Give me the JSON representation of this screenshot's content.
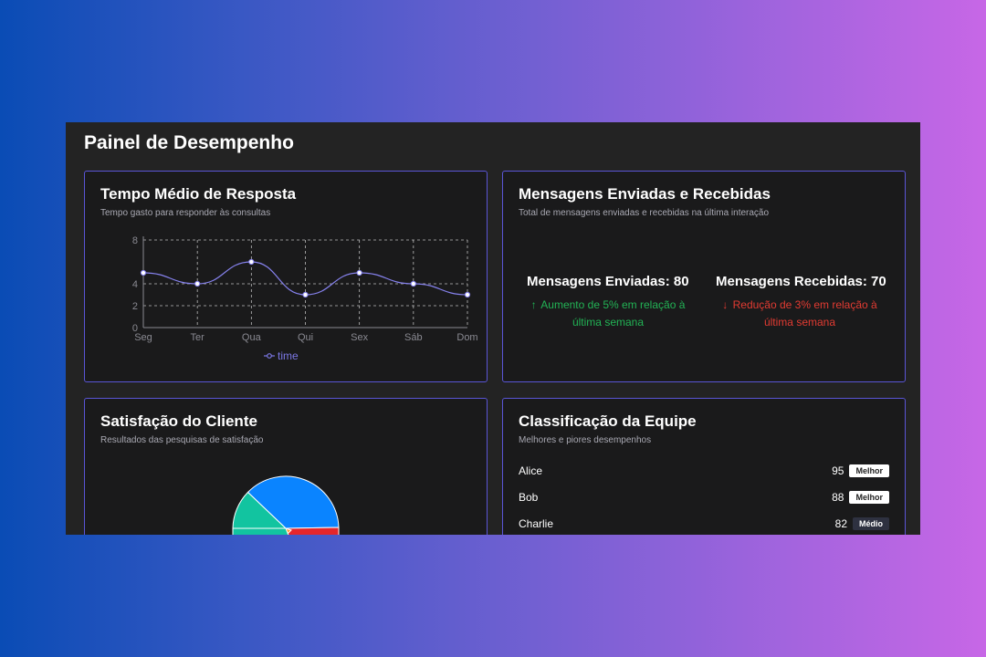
{
  "page": {
    "title": "Painel de Desempenho"
  },
  "response_time": {
    "title": "Tempo Médio de Resposta",
    "subtitle": "Tempo gasto para responder às consultas",
    "legend": "time",
    "line_color": "#8682ee"
  },
  "chart_data": {
    "type": "line",
    "categories": [
      "Seg",
      "Ter",
      "Qua",
      "Qui",
      "Sex",
      "Sáb",
      "Dom"
    ],
    "series": [
      {
        "name": "time",
        "values": [
          5,
          4,
          6,
          3,
          5,
          4,
          3
        ]
      }
    ],
    "y_ticks": [
      "0",
      "2",
      "4",
      "8"
    ],
    "ylim": [
      0,
      8
    ],
    "grid": true,
    "legend_position": "bottom"
  },
  "messages": {
    "title": "Mensagens Enviadas e Recebidas",
    "subtitle": "Total de mensagens enviadas e recebidas na última interação",
    "sent_label": "Mensagens Enviadas: 80",
    "sent_note_line1": "Aumento de 5% em relação à",
    "sent_note_line2": "última semana",
    "received_label": "Mensagens Recebidas: 70",
    "received_note_line1": "Redução de 3% em relação à",
    "received_note_line2": "última semana",
    "up_color": "#22b355",
    "down_color": "#e23b32"
  },
  "satisfaction": {
    "title": "Satisfação do Cliente",
    "subtitle": "Resultados das pesquisas de satisfação",
    "slice_colors": [
      "#0a84ff",
      "#12c4a0",
      "#e5262b",
      "#ff9a2e"
    ]
  },
  "team": {
    "title": "Classificação da Equipe",
    "subtitle": "Melhores e piores desempenhos",
    "members": [
      {
        "name": "Alice",
        "score": "95",
        "badge": "Melhor"
      },
      {
        "name": "Bob",
        "score": "88",
        "badge": "Melhor"
      },
      {
        "name": "Charlie",
        "score": "82",
        "badge": "Médio"
      }
    ]
  }
}
